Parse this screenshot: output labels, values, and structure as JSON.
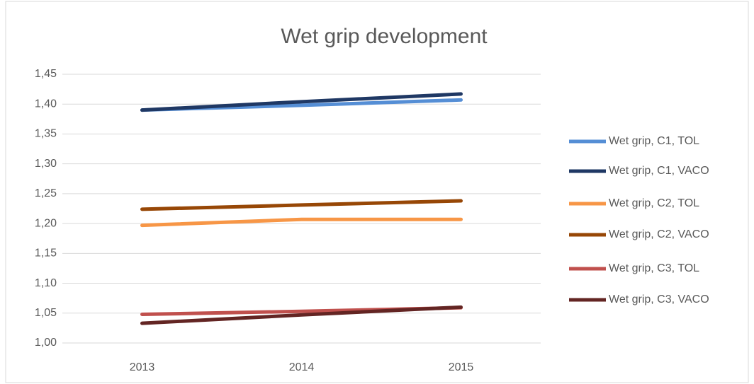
{
  "chart_data": {
    "type": "line",
    "title": "Wet grip development",
    "categories": [
      "2013",
      "2014",
      "2015"
    ],
    "series": [
      {
        "name": "Wet grip, C1, TOL",
        "color": "#558ed5",
        "values": [
          1.39,
          1.398,
          1.407
        ]
      },
      {
        "name": "Wet grip, C1, VACO",
        "color": "#1f3864",
        "values": [
          1.39,
          1.404,
          1.417
        ]
      },
      {
        "name": "Wet grip, C2, TOL",
        "color": "#f79646",
        "values": [
          1.197,
          1.207,
          1.207
        ]
      },
      {
        "name": "Wet grip, C2, VACO",
        "color": "#974706",
        "values": [
          1.224,
          1.231,
          1.238
        ]
      },
      {
        "name": "Wet grip, C3, TOL",
        "color": "#c0504d",
        "values": [
          1.048,
          1.053,
          1.059
        ]
      },
      {
        "name": "Wet grip, C3, VACO",
        "color": "#632523",
        "values": [
          1.033,
          1.047,
          1.06
        ]
      }
    ],
    "ylim": [
      1.0,
      1.45
    ],
    "yticks": [
      {
        "value": 1.0,
        "label": "1,00"
      },
      {
        "value": 1.05,
        "label": "1,05"
      },
      {
        "value": 1.1,
        "label": "1,10"
      },
      {
        "value": 1.15,
        "label": "1,15"
      },
      {
        "value": 1.2,
        "label": "1,20"
      },
      {
        "value": 1.25,
        "label": "1,25"
      },
      {
        "value": 1.3,
        "label": "1,30"
      },
      {
        "value": 1.35,
        "label": "1,35"
      },
      {
        "value": 1.4,
        "label": "1,40"
      },
      {
        "value": 1.45,
        "label": "1,45"
      }
    ],
    "grid": true,
    "legend": "right"
  }
}
